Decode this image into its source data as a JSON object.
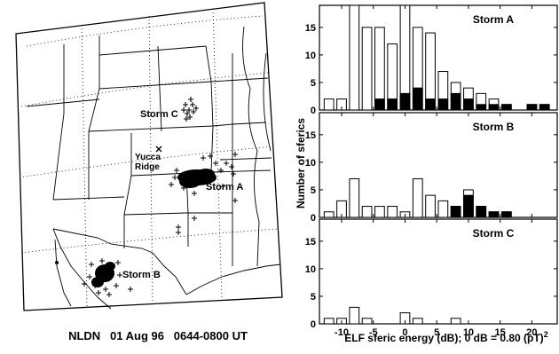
{
  "map": {
    "caption": "NLDN   01 Aug 96   0644-0800 UT",
    "labels": {
      "storm_a": "Storm A",
      "storm_b": "Storm B",
      "storm_c": "Storm C",
      "yucca_1": "Yucca",
      "yucca_2": "Ridge"
    }
  },
  "chart_data": {
    "type": "bar",
    "xlabel": "ELF sferic energy (dB); 0 dB = 0.80 (pT)",
    "xlabel_sup": "2",
    "ylabel": "Number of sferics",
    "xlim": [
      -13.5,
      24
    ],
    "ylim": [
      0,
      19
    ],
    "x_ticks": [
      -10,
      -5,
      0,
      5,
      10,
      15,
      20
    ],
    "y_ticks": [
      0,
      5,
      10,
      15
    ],
    "bin_width": 2,
    "panels": [
      {
        "title": "Storm A",
        "x": [
          -12,
          -10,
          -8,
          -6,
          -4,
          -2,
          0,
          2,
          4,
          6,
          8,
          10,
          12,
          14,
          16,
          18,
          20,
          22
        ],
        "total": [
          2,
          2,
          19,
          15,
          15,
          12,
          19,
          15,
          14,
          7,
          5,
          4,
          3,
          2,
          1,
          0,
          1,
          1
        ],
        "black": [
          0,
          0,
          0,
          0,
          2,
          2,
          3,
          4,
          2,
          2,
          3,
          2,
          1,
          1,
          1,
          0,
          1,
          1
        ]
      },
      {
        "title": "Storm B",
        "x": [
          -12,
          -10,
          -8,
          -6,
          -4,
          -2,
          0,
          2,
          4,
          6,
          8,
          10,
          12,
          14,
          16
        ],
        "total": [
          1,
          3,
          7,
          2,
          2,
          2,
          1,
          7,
          4,
          3,
          2,
          5,
          2,
          1,
          1
        ],
        "black": [
          0,
          0,
          0,
          0,
          0,
          0,
          0,
          0,
          0,
          0,
          2,
          4,
          2,
          1,
          1
        ]
      },
      {
        "title": "Storm C",
        "x": [
          -12,
          -10,
          -8,
          -6,
          -4,
          -2,
          0,
          2,
          4,
          6,
          8,
          10
        ],
        "total": [
          1,
          1,
          3,
          1,
          0,
          0,
          2,
          1,
          0,
          0,
          1,
          0
        ],
        "black": [
          0,
          0,
          0,
          0,
          0,
          0,
          0,
          0,
          0,
          0,
          0,
          0
        ]
      }
    ]
  }
}
